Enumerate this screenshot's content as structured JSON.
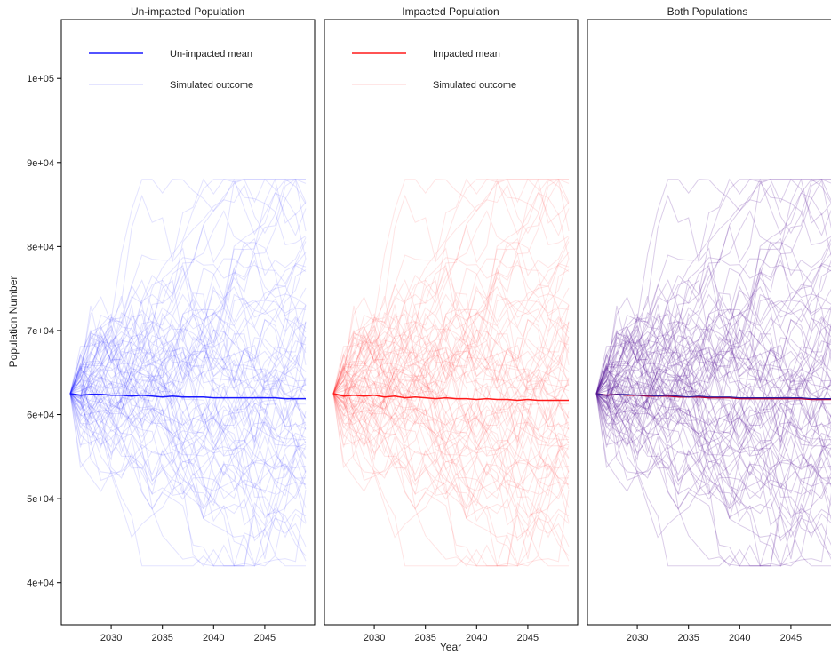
{
  "chart_data": {
    "type": "line",
    "ylabel": "Population Number",
    "xlabel": "Year",
    "xlim": [
      2026,
      2049
    ],
    "ylim": [
      35000,
      107000
    ],
    "x_ticks": [
      2030,
      2035,
      2040,
      2045
    ],
    "y_ticks": [
      40000,
      50000,
      60000,
      70000,
      80000,
      90000,
      100000
    ],
    "y_tick_labels": [
      "4e+04",
      "5e+04",
      "6e+04",
      "7e+04",
      "8e+04",
      "9e+04",
      "1e+05"
    ],
    "years": [
      2026,
      2027,
      2028,
      2029,
      2030,
      2031,
      2032,
      2033,
      2034,
      2035,
      2036,
      2037,
      2038,
      2039,
      2040,
      2041,
      2042,
      2043,
      2044,
      2045,
      2046,
      2047,
      2048,
      2049
    ],
    "simulation": {
      "runs": 80,
      "start": 62500,
      "envelope_low": 42000,
      "envelope_high": 88000
    },
    "panels": [
      {
        "title": "Un-impacted Population",
        "legend": {
          "position": "top-left",
          "entries": [
            "Un-impacted mean",
            "Simulated outcome"
          ]
        },
        "colors": {
          "mean": "#1a1aff",
          "sim": "#2a2aff"
        },
        "mean_values": [
          62500,
          62300,
          62400,
          62400,
          62300,
          62300,
          62200,
          62300,
          62200,
          62100,
          62200,
          62100,
          62100,
          62100,
          62000,
          62000,
          62000,
          62000,
          62000,
          62000,
          62000,
          61900,
          61900,
          61900
        ]
      },
      {
        "title": "Impacted Population",
        "legend": {
          "position": "top-left",
          "entries": [
            "Impacted mean",
            "Simulated outcome"
          ]
        },
        "colors": {
          "mean": "#ff1a1a",
          "sim": "#ff3333"
        },
        "mean_values": [
          62500,
          62200,
          62300,
          62200,
          62300,
          62100,
          62200,
          62000,
          62100,
          62000,
          61900,
          62000,
          61900,
          61900,
          61800,
          61900,
          61800,
          61800,
          61700,
          61800,
          61700,
          61700,
          61700,
          61700
        ]
      },
      {
        "title": "Both Populations",
        "legend": {
          "position": "none",
          "entries": []
        },
        "colors": {
          "mean": "#c00030",
          "mean2": "#3020a0",
          "sim": "#5a1a9a"
        },
        "mean_values": [
          62500,
          62300,
          62400,
          62300,
          62300,
          62200,
          62200,
          62200,
          62100,
          62100,
          62100,
          62000,
          62000,
          62000,
          61900,
          61900,
          61900,
          61900,
          61900,
          61900,
          61900,
          61800,
          61800,
          61800
        ]
      }
    ]
  }
}
